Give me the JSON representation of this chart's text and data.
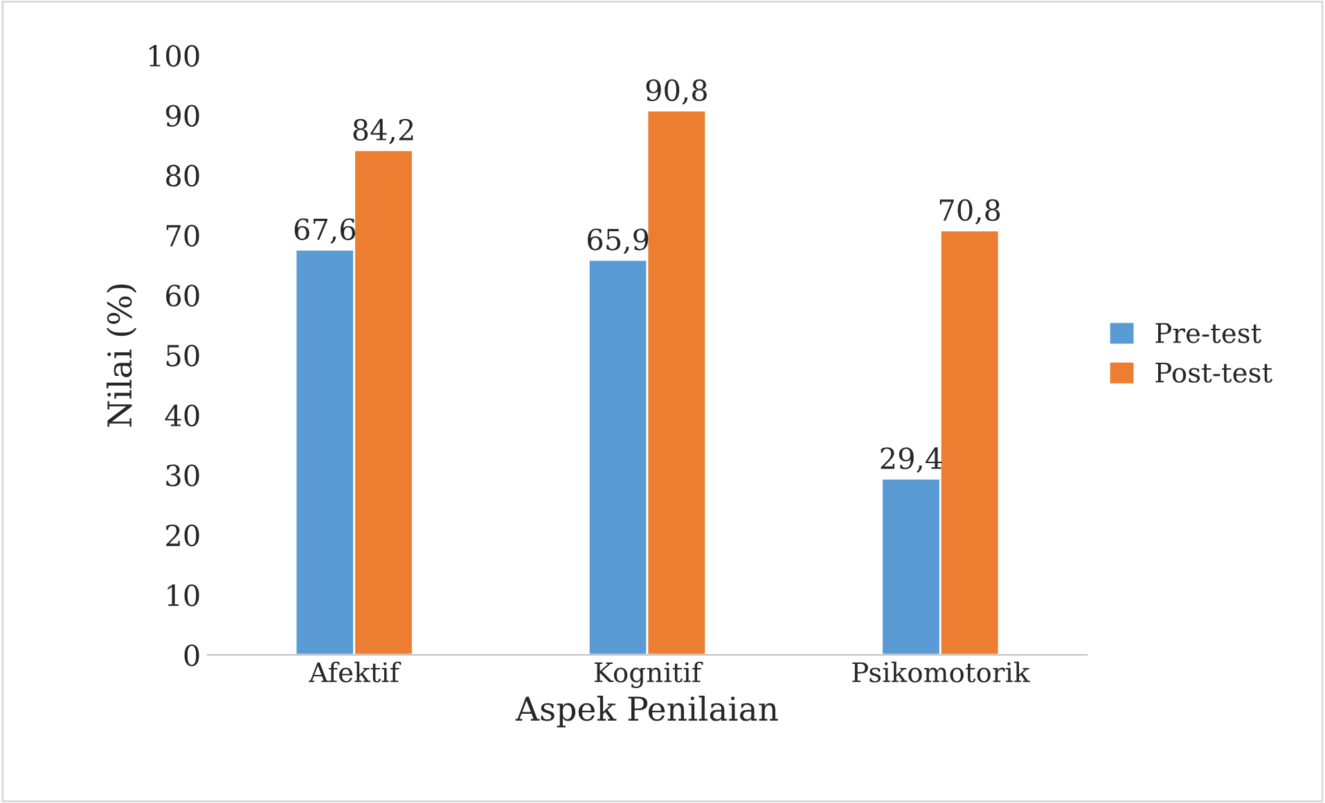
{
  "chart_data": {
    "type": "bar",
    "xlabel": "Aspek Penilaian",
    "ylabel": "Nilai (%)",
    "categories": [
      "Afektif",
      "Kognitif",
      "Psikomotorik"
    ],
    "series": [
      {
        "name": "Pre-test",
        "color": "#5b9bd5",
        "values": [
          67.6,
          65.9,
          29.4
        ],
        "value_labels": [
          "67,6",
          "65,9",
          "29,4"
        ]
      },
      {
        "name": "Post-test",
        "color": "#ed7d31",
        "values": [
          84.2,
          90.8,
          70.8
        ],
        "value_labels": [
          "84,2",
          "90,8",
          "70,8"
        ]
      }
    ],
    "ylim": [
      0,
      100
    ],
    "yticks": [
      0,
      10,
      20,
      30,
      40,
      50,
      60,
      70,
      80,
      90,
      100
    ],
    "grid": false,
    "legend": "right"
  }
}
